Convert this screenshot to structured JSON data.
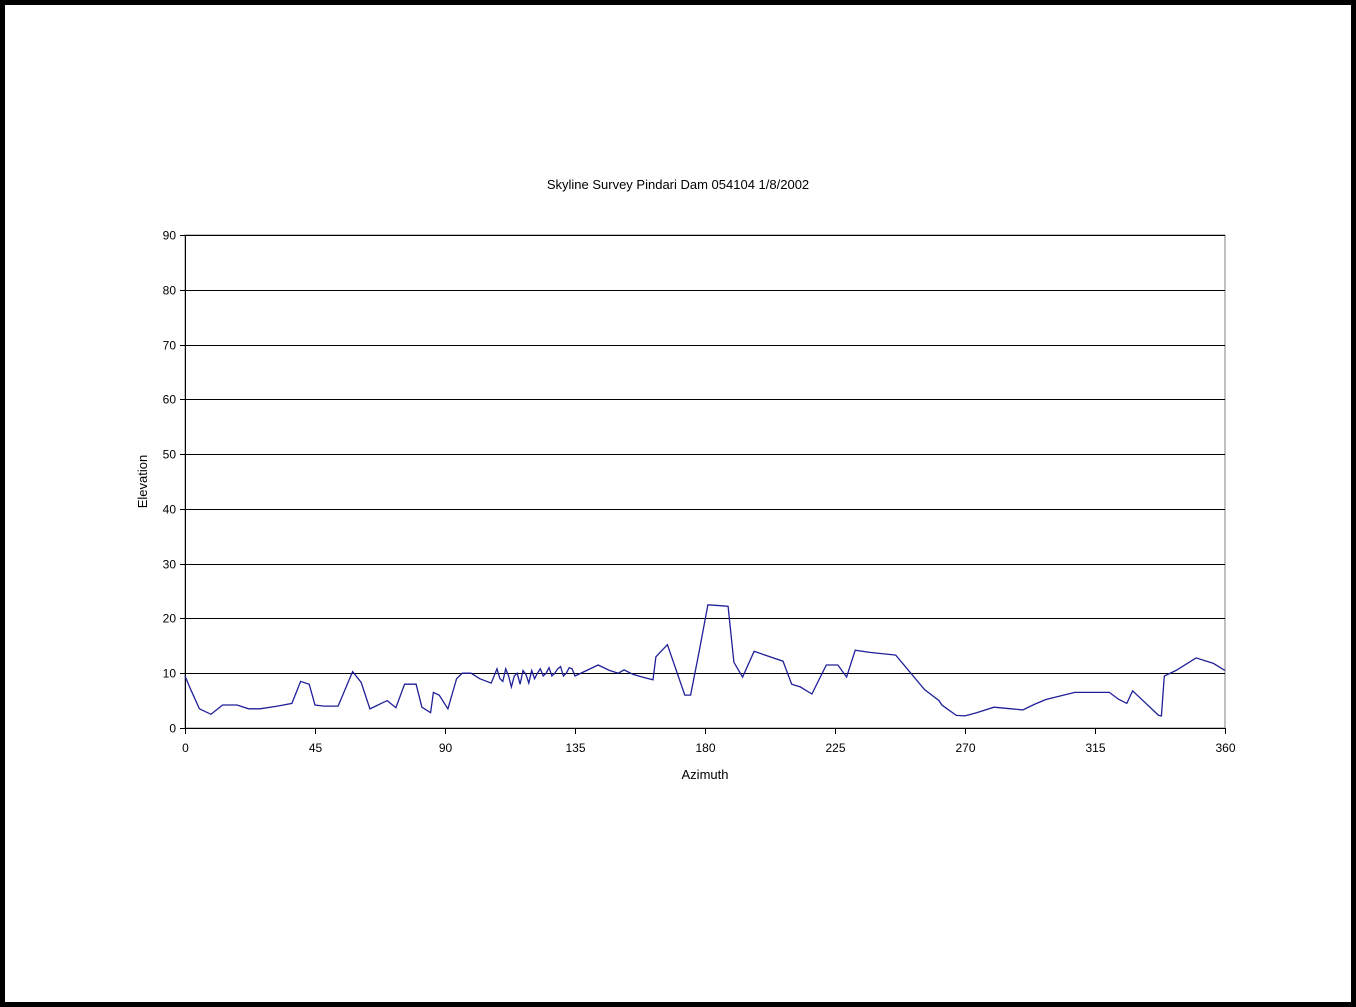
{
  "chart_data": {
    "type": "line",
    "title": "Skyline Survey Pindari Dam 054104 1/8/2002",
    "xlabel": "Azimuth",
    "ylabel": "Elevation",
    "xlim": [
      0,
      360
    ],
    "ylim": [
      0,
      90
    ],
    "xticks": [
      0,
      45,
      90,
      135,
      180,
      225,
      270,
      315,
      360
    ],
    "yticks": [
      0,
      10,
      20,
      30,
      40,
      50,
      60,
      70,
      80,
      90
    ],
    "grid": "horizontal",
    "legend": "none",
    "line_color": "#1f1f99",
    "series": [
      {
        "x": [
          0,
          2,
          5,
          9,
          13,
          18,
          22,
          26,
          32,
          37,
          40,
          43,
          45,
          48,
          53,
          58,
          61,
          64,
          66,
          70,
          73,
          76,
          80,
          82,
          85,
          86,
          88,
          91,
          94,
          96,
          99,
          102,
          106,
          108,
          109,
          110,
          111,
          112,
          113,
          114,
          115,
          116,
          117,
          118,
          119,
          120,
          121,
          122,
          123,
          124,
          125,
          126,
          127,
          128,
          129,
          130,
          131,
          132,
          133,
          134,
          135,
          139,
          143,
          147,
          150,
          152,
          155,
          159,
          162,
          163,
          167,
          173,
          175,
          178,
          181,
          186,
          188,
          190,
          193,
          197,
          207,
          210,
          213,
          217,
          222,
          226,
          229,
          232,
          237,
          246,
          256,
          261,
          262,
          263,
          267,
          270,
          274,
          280,
          286,
          290,
          294,
          298,
          308,
          320,
          323,
          326,
          328,
          337,
          338,
          339,
          343,
          350,
          356,
          360
        ],
        "y": [
          9.5,
          7,
          3.5,
          2.5,
          4.2,
          4.2,
          3.5,
          3.5,
          4,
          4.5,
          8.5,
          8,
          4.2,
          4,
          4,
          10.3,
          8.3,
          3.5,
          4,
          5,
          3.7,
          8,
          8,
          3.8,
          2.8,
          6.5,
          6,
          3.5,
          9,
          10,
          10,
          9,
          8.2,
          10.8,
          9,
          8.5,
          10.8,
          9.5,
          7.5,
          9.5,
          10,
          8,
          10.5,
          9.8,
          8.2,
          10.5,
          9,
          10,
          10.8,
          9.5,
          10,
          11,
          9.5,
          10,
          10.8,
          11.2,
          9.5,
          10,
          11,
          10.8,
          9.5,
          10.5,
          11.5,
          10.5,
          10,
          10.6,
          9.8,
          9.2,
          8.8,
          13,
          15.2,
          6,
          6,
          14,
          22.5,
          22.3,
          22.2,
          12,
          9.3,
          14,
          12.2,
          8,
          7.5,
          6.2,
          11.5,
          11.5,
          9.3,
          14.2,
          13.8,
          13.3,
          7,
          5,
          4.2,
          3.8,
          2.3,
          2.2,
          2.8,
          3.8,
          3.5,
          3.3,
          4.3,
          5.2,
          6.5,
          6.5,
          5.3,
          4.5,
          6.8,
          2.3,
          2.2,
          9.5,
          10.5,
          12.8,
          11.8,
          10.5
        ]
      }
    ]
  }
}
